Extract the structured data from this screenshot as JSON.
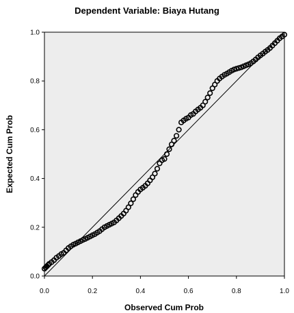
{
  "chart_data": {
    "type": "scatter",
    "title": "Dependent Variable: Biaya Hutang",
    "xlabel": "Observed Cum Prob",
    "ylabel": "Expected Cum Prob",
    "xlim": [
      0,
      1
    ],
    "ylim": [
      0,
      1
    ],
    "x_ticks": [
      0.0,
      0.2,
      0.4,
      0.6,
      0.8,
      1.0
    ],
    "y_ticks": [
      0.0,
      0.2,
      0.4,
      0.6,
      0.8,
      1.0
    ],
    "x_tick_labels": [
      "0.0",
      "0.2",
      "0.4",
      "0.6",
      "0.8",
      "1.0"
    ],
    "y_tick_labels": [
      "0.0",
      "0.2",
      "0.4",
      "0.6",
      "0.8",
      "1.0"
    ],
    "grid": false,
    "reference_line": [
      [
        0,
        0
      ],
      [
        1,
        1
      ]
    ],
    "plot_background": "#ededed",
    "marker_color": "#000000",
    "points": [
      [
        0.0,
        0.03
      ],
      [
        0.005,
        0.035
      ],
      [
        0.01,
        0.04
      ],
      [
        0.015,
        0.045
      ],
      [
        0.02,
        0.05
      ],
      [
        0.03,
        0.057
      ],
      [
        0.04,
        0.065
      ],
      [
        0.05,
        0.075
      ],
      [
        0.06,
        0.082
      ],
      [
        0.07,
        0.09
      ],
      [
        0.08,
        0.095
      ],
      [
        0.09,
        0.105
      ],
      [
        0.1,
        0.115
      ],
      [
        0.11,
        0.122
      ],
      [
        0.12,
        0.128
      ],
      [
        0.13,
        0.133
      ],
      [
        0.14,
        0.138
      ],
      [
        0.15,
        0.143
      ],
      [
        0.16,
        0.148
      ],
      [
        0.17,
        0.152
      ],
      [
        0.18,
        0.157
      ],
      [
        0.19,
        0.162
      ],
      [
        0.2,
        0.167
      ],
      [
        0.21,
        0.172
      ],
      [
        0.22,
        0.178
      ],
      [
        0.23,
        0.184
      ],
      [
        0.24,
        0.192
      ],
      [
        0.25,
        0.2
      ],
      [
        0.26,
        0.205
      ],
      [
        0.27,
        0.21
      ],
      [
        0.28,
        0.215
      ],
      [
        0.29,
        0.22
      ],
      [
        0.3,
        0.228
      ],
      [
        0.31,
        0.237
      ],
      [
        0.32,
        0.246
      ],
      [
        0.33,
        0.256
      ],
      [
        0.34,
        0.268
      ],
      [
        0.35,
        0.282
      ],
      [
        0.36,
        0.298
      ],
      [
        0.37,
        0.315
      ],
      [
        0.38,
        0.332
      ],
      [
        0.39,
        0.345
      ],
      [
        0.4,
        0.355
      ],
      [
        0.41,
        0.362
      ],
      [
        0.42,
        0.37
      ],
      [
        0.43,
        0.38
      ],
      [
        0.44,
        0.392
      ],
      [
        0.45,
        0.405
      ],
      [
        0.46,
        0.42
      ],
      [
        0.47,
        0.44
      ],
      [
        0.48,
        0.462
      ],
      [
        0.49,
        0.475
      ],
      [
        0.5,
        0.48
      ],
      [
        0.51,
        0.5
      ],
      [
        0.52,
        0.52
      ],
      [
        0.53,
        0.54
      ],
      [
        0.54,
        0.555
      ],
      [
        0.55,
        0.575
      ],
      [
        0.56,
        0.6
      ],
      [
        0.57,
        0.63
      ],
      [
        0.58,
        0.638
      ],
      [
        0.59,
        0.645
      ],
      [
        0.6,
        0.65
      ],
      [
        0.61,
        0.66
      ],
      [
        0.62,
        0.665
      ],
      [
        0.63,
        0.675
      ],
      [
        0.64,
        0.683
      ],
      [
        0.65,
        0.69
      ],
      [
        0.66,
        0.7
      ],
      [
        0.67,
        0.715
      ],
      [
        0.68,
        0.732
      ],
      [
        0.69,
        0.75
      ],
      [
        0.7,
        0.77
      ],
      [
        0.71,
        0.785
      ],
      [
        0.72,
        0.8
      ],
      [
        0.73,
        0.81
      ],
      [
        0.74,
        0.818
      ],
      [
        0.75,
        0.825
      ],
      [
        0.76,
        0.83
      ],
      [
        0.77,
        0.836
      ],
      [
        0.78,
        0.842
      ],
      [
        0.79,
        0.847
      ],
      [
        0.8,
        0.85
      ],
      [
        0.81,
        0.853
      ],
      [
        0.82,
        0.856
      ],
      [
        0.83,
        0.86
      ],
      [
        0.84,
        0.864
      ],
      [
        0.85,
        0.868
      ],
      [
        0.86,
        0.873
      ],
      [
        0.87,
        0.88
      ],
      [
        0.88,
        0.888
      ],
      [
        0.89,
        0.897
      ],
      [
        0.9,
        0.905
      ],
      [
        0.91,
        0.912
      ],
      [
        0.92,
        0.92
      ],
      [
        0.93,
        0.927
      ],
      [
        0.94,
        0.935
      ],
      [
        0.95,
        0.945
      ],
      [
        0.96,
        0.955
      ],
      [
        0.97,
        0.965
      ],
      [
        0.98,
        0.975
      ],
      [
        0.99,
        0.982
      ],
      [
        1.0,
        0.99
      ]
    ]
  }
}
